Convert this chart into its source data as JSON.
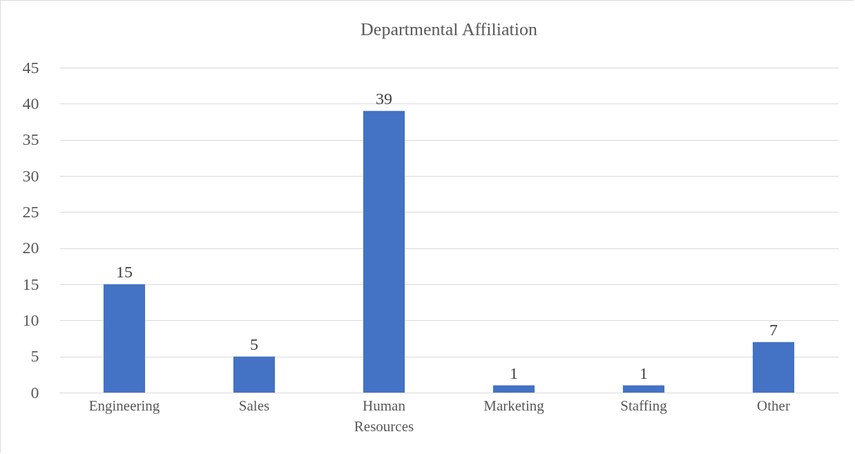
{
  "chart_data": {
    "type": "bar",
    "title": "Departmental Affiliation",
    "categories": [
      "Engineering",
      "Sales",
      "Human Resources",
      "Marketing",
      "Staffing",
      "Other"
    ],
    "values": [
      15,
      5,
      39,
      1,
      1,
      7
    ],
    "color": "#4472c4",
    "ylim": [
      0,
      45
    ],
    "yticks": [
      0,
      5,
      10,
      15,
      20,
      25,
      30,
      35,
      40,
      45
    ],
    "grid": "y",
    "data_labels": true
  }
}
